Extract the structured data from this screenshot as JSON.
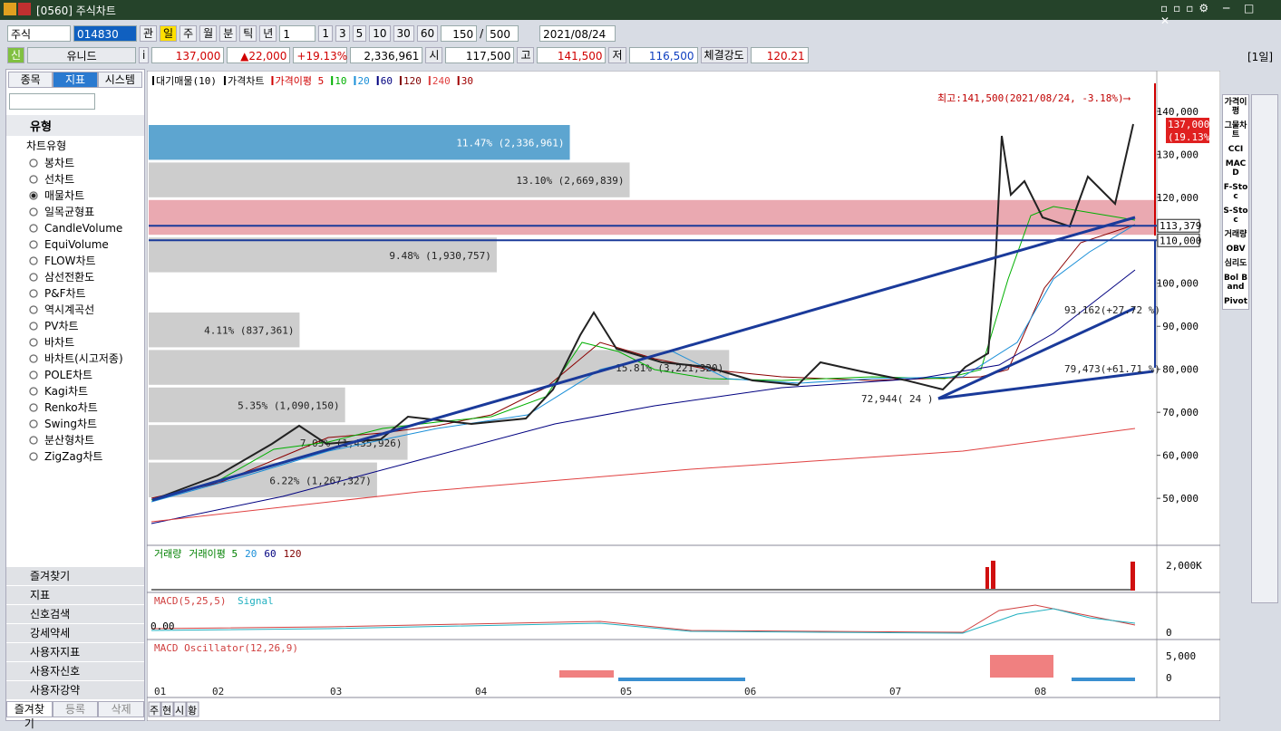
{
  "window": {
    "title": "[0560] 주식차트"
  },
  "toolbar": {
    "market": "주식",
    "code": "014830",
    "watch": "관",
    "periods": [
      "일",
      "주",
      "월",
      "분",
      "틱",
      "년"
    ],
    "interval": "1",
    "quick": [
      "1",
      "3",
      "5",
      "10",
      "30",
      "60"
    ],
    "count": "150",
    "sep": "/",
    "total": "500",
    "date": "2021/08/24"
  },
  "quote": {
    "badge": "신",
    "name": "유니드",
    "info": "i",
    "price": "137,000",
    "change": "▲22,000",
    "rate": "+19.13%",
    "volume": "2,336,961",
    "open_label": "시",
    "open": "117,500",
    "high_label": "고",
    "high": "141,500",
    "low_label": "저",
    "low": "116,500",
    "strength_label": "체결강도",
    "strength": "120.21",
    "period": "[1일]"
  },
  "sidebar": {
    "tabs": [
      "종목",
      "지표",
      "시스템"
    ],
    "section": "유형",
    "group": "차트유형",
    "types": [
      "봉차트",
      "선차트",
      "매물차트",
      "일목균형표",
      "CandleVolume",
      "EquiVolume",
      "FLOW차트",
      "삼선전환도",
      "P&F차트",
      "역시계곡선",
      "PV차트",
      "바차트",
      "바차트(시고저종)",
      "POLE차트",
      "Kagi차트",
      "Renko차트",
      "Swing차트",
      "분산형차트",
      "ZigZag차트"
    ],
    "selected": 2,
    "folders": [
      "즐겨찾기",
      "지표",
      "신호검색",
      "강세약세",
      "사용자지표",
      "사용자신호",
      "사용자강약"
    ],
    "bottom_tabs": [
      "즐겨찾기",
      "등록",
      "삭제"
    ]
  },
  "main_chart": {
    "legend": [
      {
        "name": "대기매물(10)",
        "color": "#000"
      },
      {
        "name": "가격차트",
        "color": "#000"
      },
      {
        "name": "가격이평 5",
        "color": "#d00000"
      },
      {
        "name": "10",
        "color": "#00b000"
      },
      {
        "name": "20",
        "color": "#1a8fd8"
      },
      {
        "name": "60",
        "color": "#000080"
      },
      {
        "name": "120",
        "color": "#800000"
      },
      {
        "name": "240",
        "color": "#e04040"
      },
      {
        "name": "30",
        "color": "#a00000"
      }
    ],
    "ylim": [
      39500,
      148600
    ],
    "yticks": [
      {
        "value": 140000,
        "label": "140,000"
      },
      {
        "value": 130000,
        "label": "130,000"
      },
      {
        "value": 120000,
        "label": "120,000"
      },
      {
        "value": 100000,
        "label": "100,000"
      },
      {
        "value": 90000,
        "label": "90,000"
      },
      {
        "value": 80000,
        "label": "80,000"
      },
      {
        "value": 70000,
        "label": "70,000"
      },
      {
        "value": 60000,
        "label": "60,000"
      },
      {
        "value": 50000,
        "label": "50,000"
      }
    ],
    "profile": [
      {
        "value": 11.47,
        "label": "11.47% (2,336,961)",
        "color": "#4b9bcb"
      },
      {
        "value": 13.1,
        "label": "13.10% (2,669,839)",
        "color": "#c8c8c8"
      },
      {
        "value": 27.4,
        "label": null,
        "color": "#e8a0a8"
      },
      {
        "value": 9.48,
        "label": "9.48% (1,930,757)",
        "color": "#c8c8c8"
      },
      {
        "value": 0,
        "label": null,
        "color": "#c8c8c8"
      },
      {
        "value": 4.11,
        "label": "4.11% (837,361)",
        "color": "#c8c8c8"
      },
      {
        "value": 15.81,
        "label": "15.81% (3,221,320)",
        "color": "#c8c8c8"
      },
      {
        "value": 5.35,
        "label": "5.35% (1,090,150)",
        "color": "#c8c8c8"
      },
      {
        "value": 7.05,
        "label": "7.05% (1,435,926)",
        "color": "#c8c8c8"
      },
      {
        "value": 6.22,
        "label": "6.22% (1,267,327)",
        "color": "#c8c8c8"
      }
    ],
    "levels": [
      {
        "value": 113379,
        "label": "113,379"
      },
      {
        "value": 110000,
        "label": "110,000"
      }
    ],
    "last": {
      "price": "137,000",
      "rate": "(19.13%)"
    },
    "annotations": [
      "최고:141,500(2021/08/24, -3.18%)⟶",
      "93,162(+27.72 %)",
      "79,473(+61.71 %)",
      "72,944( 24 )"
    ],
    "xlabels": [
      "01",
      "02",
      "03",
      "04",
      "05",
      "06",
      "07",
      "08"
    ]
  },
  "volume": {
    "legend": [
      "거래량",
      "거래이평 5",
      "20",
      "60",
      "120"
    ],
    "tick": "2,000K"
  },
  "macd": {
    "legend": [
      "MACD(5,25,5)",
      "Signal"
    ],
    "left": "0.00",
    "tick": "0"
  },
  "osc": {
    "legend": "MACD Oscillator(12,26,9)",
    "ticks": [
      "5,000",
      "0"
    ]
  },
  "bottom_tabs": [
    "주",
    "현",
    "시",
    "황"
  ],
  "right_panel": [
    "가격이평",
    "그물차트",
    "CCI",
    "MACD",
    "F-Stoc",
    "S-Stoc",
    "거래량",
    "OBV",
    "심리도",
    "Bol Band",
    "Pivot"
  ]
}
